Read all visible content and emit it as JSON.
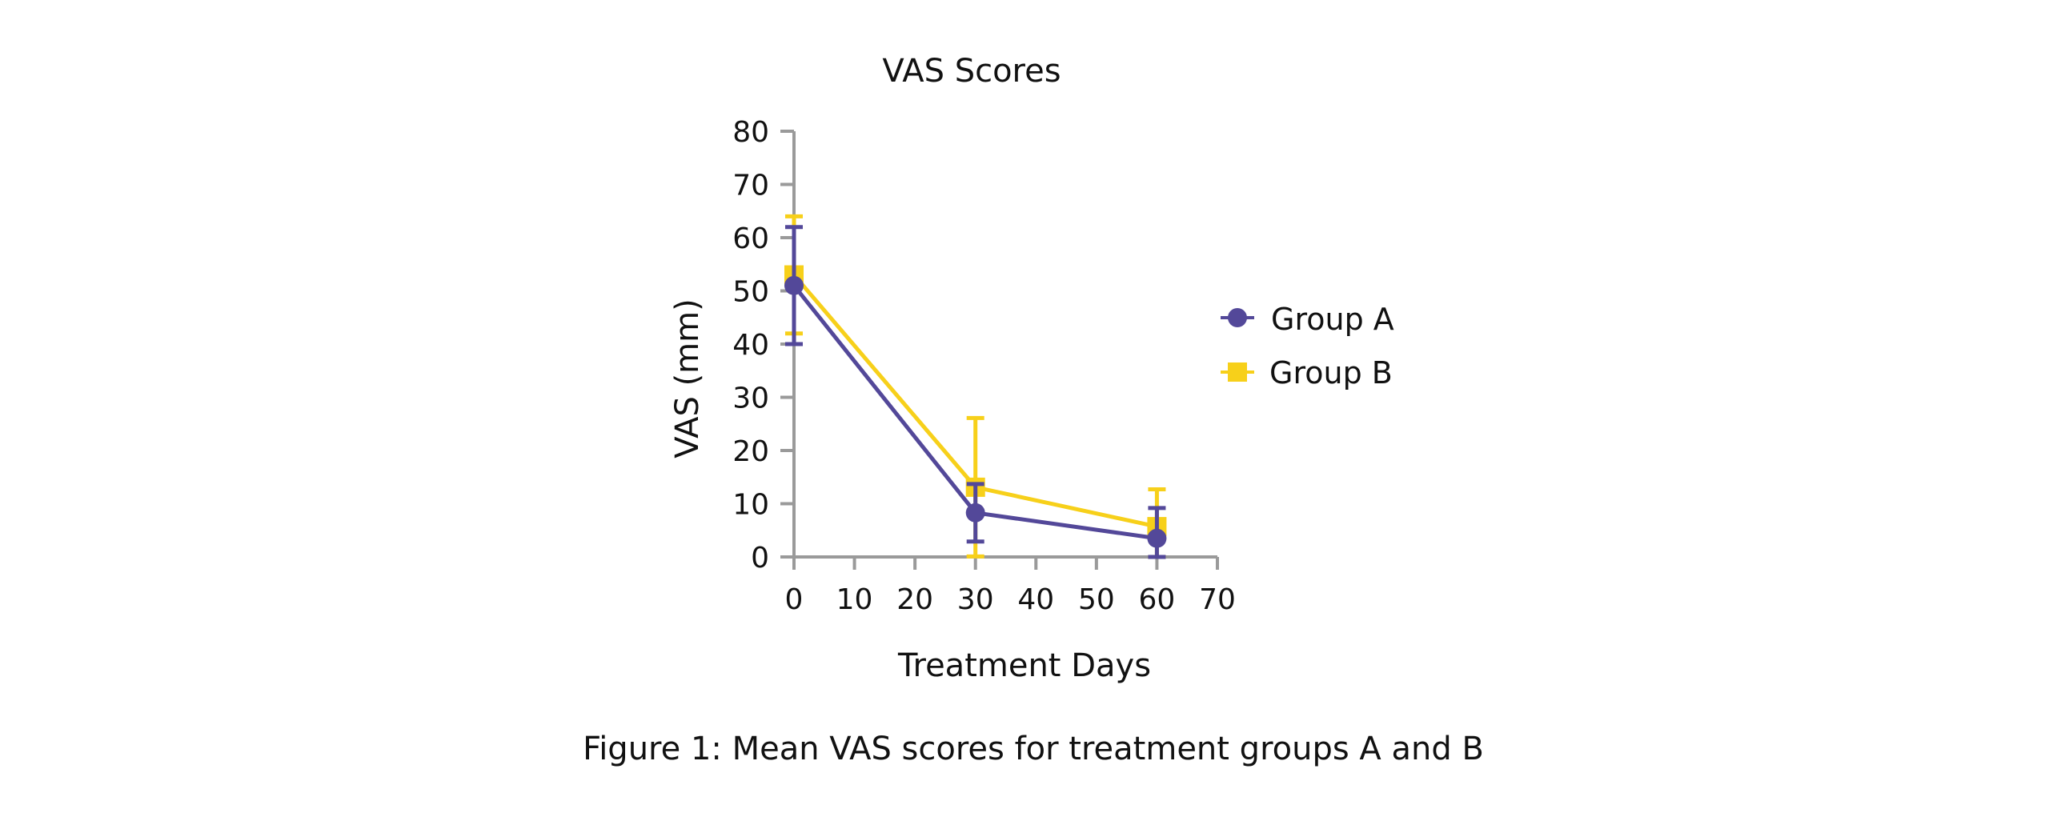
{
  "chart_data": {
    "type": "line",
    "title": "VAS Scores",
    "xlabel": "Treatment Days",
    "ylabel": "VAS (mm)",
    "xlim": [
      0,
      70
    ],
    "ylim": [
      0,
      80
    ],
    "x_ticks": [
      0,
      10,
      20,
      30,
      40,
      50,
      60,
      70
    ],
    "y_ticks": [
      0,
      10,
      20,
      30,
      40,
      50,
      60,
      70,
      80
    ],
    "x_tick_labels": [
      "0",
      "10",
      "20",
      "30",
      "40",
      "50",
      "60",
      "70"
    ],
    "y_tick_labels": [
      "0",
      "10",
      "20",
      "30",
      "40",
      "50",
      "60",
      "70",
      "80"
    ],
    "grid": false,
    "legend_position": "right",
    "x": [
      0,
      30,
      60
    ],
    "series": [
      {
        "name": "Group A",
        "marker": "circle",
        "color": "#534899",
        "values": [
          51,
          8.3,
          3.5
        ],
        "error": [
          11,
          5.4,
          5.7
        ]
      },
      {
        "name": "Group B",
        "marker": "square",
        "color": "#f7d01a",
        "values": [
          53,
          13.1,
          5.7
        ],
        "error": [
          11,
          13,
          7
        ]
      }
    ]
  },
  "caption": "Figure 1: Mean VAS scores for treatment groups A and B"
}
